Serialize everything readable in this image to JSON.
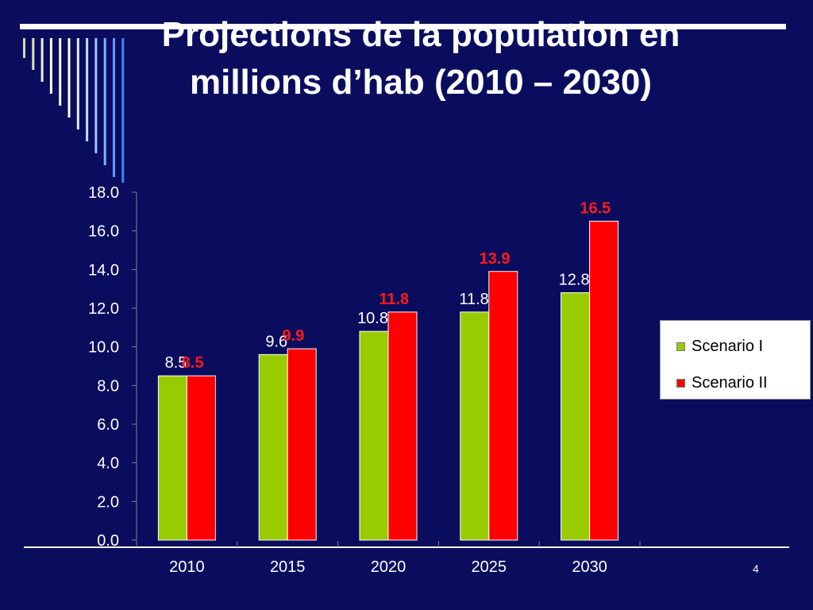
{
  "slide": {
    "title_lines": [
      "Projections de la population  en",
      "millions d’hab (2010 – 2030)"
    ],
    "page_number": "4"
  },
  "colors": {
    "background": "#0a0d5e",
    "scenario_1": "#99cc00",
    "scenario_2": "#ff0000",
    "label_1": "#ffffff",
    "label_2": "#ff1a1a",
    "deco_bar": "#ffffff"
  },
  "chart_data": {
    "type": "bar",
    "categories": [
      "2010",
      "2015",
      "2020",
      "2025",
      "2030"
    ],
    "series": [
      {
        "name": "Scenario I",
        "values": [
          8.5,
          9.6,
          10.8,
          11.8,
          12.8
        ],
        "labels": [
          "8.5",
          "9.6",
          "10.8",
          "11.8",
          "12.8"
        ]
      },
      {
        "name": "Scenario II",
        "values": [
          8.5,
          9.9,
          11.8,
          13.9,
          16.5
        ],
        "labels": [
          "8.5",
          "9.9",
          "11.8",
          "13.9",
          "16.5"
        ]
      }
    ],
    "y_ticks": [
      "0.0",
      "2.0",
      "4.0",
      "6.0",
      "8.0",
      "10.0",
      "12.0",
      "14.0",
      "16.0",
      "18.0"
    ],
    "ylim": [
      0,
      18
    ],
    "grid": false,
    "legend_position": "right"
  }
}
